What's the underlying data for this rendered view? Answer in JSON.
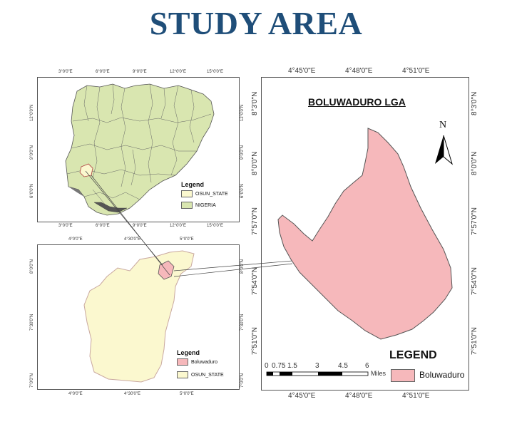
{
  "title": "STUDY AREA",
  "colors": {
    "title": "#1f4e79",
    "nigeria_fill": "#d9e6b0",
    "osun_fill": "#fbf8cf",
    "boluwaduro_fill": "#f6b8bb",
    "lagos_coast": "#555555"
  },
  "nigeria_map": {
    "top_ticks": [
      "3°0'0\"E",
      "6°0'0\"E",
      "9°0'0\"E",
      "12°0'0\"E",
      "15°0'0\"E"
    ],
    "bottom_ticks": [
      "3°0'0\"E",
      "6°0'0\"E",
      "9°0'0\"E",
      "12°0'0\"E",
      "15°0'0\"E"
    ],
    "left_ticks": [
      "12°0'0\"N",
      "9°0'0\"N",
      "6°0'0\"N"
    ],
    "right_ticks": [
      "12°0'0\"N",
      "9°0'0\"N",
      "6°0'0\"N"
    ],
    "legend": {
      "title": "Legend",
      "items": [
        {
          "label": "OSUN_STATE",
          "color": "#fbf8cf"
        },
        {
          "label": "NIGERIA",
          "color": "#d9e6b0"
        }
      ]
    }
  },
  "osun_map": {
    "top_ticks": [
      "4°0'0\"E",
      "4°30'0\"E",
      "5°0'0\"E"
    ],
    "bottom_ticks": [
      "4°0'0\"E",
      "4°30'0\"E",
      "5°0'0\"E"
    ],
    "left_ticks": [
      "8°0'0\"N",
      "7°30'0\"N",
      "7°0'0\"N"
    ],
    "right_ticks": [
      "8°0'0\"N",
      "7°30'0\"N",
      "7°0'0\"N"
    ],
    "legend": {
      "title": "Legend",
      "items": [
        {
          "label": "Boluwaduro",
          "color": "#f6b8bb"
        },
        {
          "label": "OSUN_STATE",
          "color": "#fbf8cf"
        }
      ]
    }
  },
  "lga_map": {
    "title": "BOLUWADURO LGA",
    "north": "N",
    "top_ticks": [
      "4°45'0\"E",
      "4°48'0\"E",
      "4°51'0\"E"
    ],
    "bottom_ticks": [
      "4°45'0\"E",
      "4°48'0\"E",
      "4°51'0\"E"
    ],
    "left_ticks": [
      "8°3'0\"N",
      "8°0'0\"N",
      "7°57'0\"N",
      "7°54'0\"N",
      "7°51'0\"N"
    ],
    "right_ticks": [
      "8°3'0\"N",
      "8°0'0\"N",
      "7°57'0\"N",
      "7°54'0\"N",
      "7°51'0\"N"
    ],
    "scale_labels": [
      "0",
      "0.75",
      "1.5",
      "3",
      "4.5",
      "6"
    ],
    "scale_unit": "Miles",
    "legend": {
      "title": "LEGEND",
      "items": [
        {
          "label": "Boluwaduro",
          "color": "#f6b8bb"
        }
      ]
    }
  }
}
